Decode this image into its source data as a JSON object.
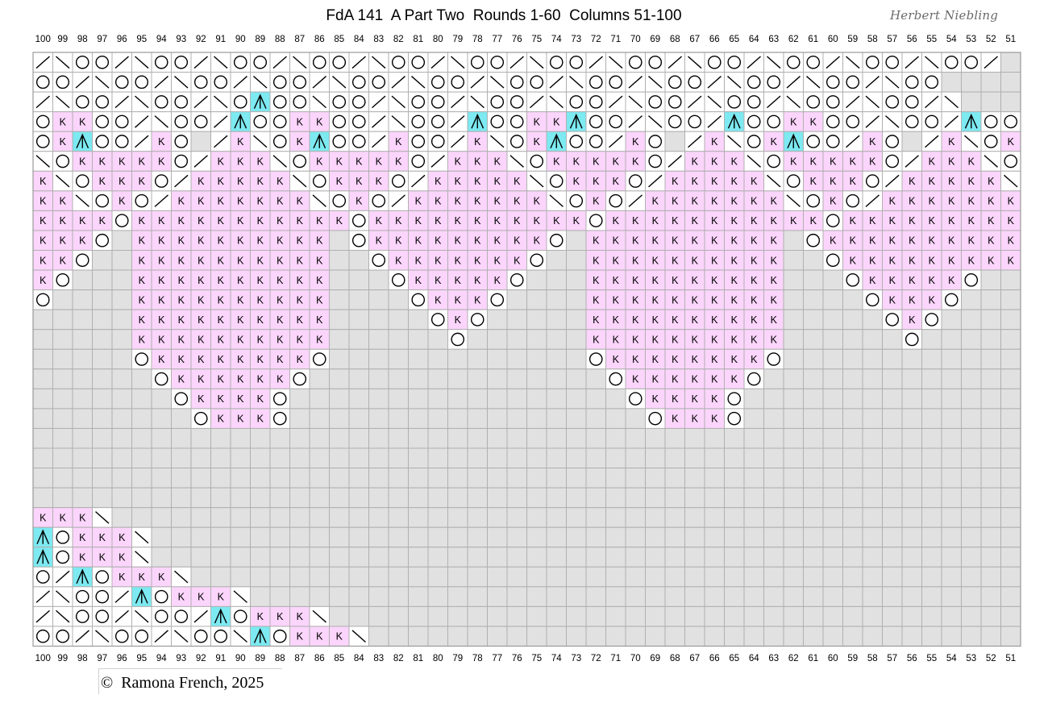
{
  "title": "FdA 141  A Part Two  Rounds 1-60  Columns 51-100",
  "signature": "Herbert Niebling",
  "copyright": "©  Ramona French, 2025",
  "chart": {
    "first_column": 100,
    "last_column": 51,
    "legend_codes": {
      "K": "knit",
      "O": "yarn over",
      "/": "slash",
      "\\": "backslash",
      "^": "central double decrease",
      "#": "no stitch",
      ".": "empty"
    },
    "colors": {
      "knit": "#fbd5fb",
      "decrease_highlight": "#7de9f1",
      "no_stitch": "#e1e1e1",
      "grid": "#b0b0b0",
      "empty": "#ffffff"
    },
    "rows": [
      "/\\OO/\\OO/\\OO/\\OO/\\OO/\\OO/\\OO/\\OO/\\OO/\\OO/\\OO/\\OO/",
      "OO/\\OO/\\OO/\\OO/\\OO/\\OO/\\OO/\\OO/\\OO/\\OO/\\OO/\\OO",
      "/\\OO/\\OO/\\O^OO\\OO/\\OO/\\OO/\\OO/\\OO/\\OO/\\OO/\\OO/\\",
      "OKKOO/\\OO/^OOKKOO/\\OO/^OOKK^OO/\\OO/^OOKKOO/\\OO/^OOK",
      "OK^OO/KO#/K\\OK^OO/KOO/K\\OK^OO/KO#/K\\OK^OO/KO#/K\\OK",
      "\\OKKKKKO/KKK\\OKKKKKO/KKK\\OKKKKKO/KKK\\OKKKKKO/KKK\\O",
      "K\\OKKKO/KKKKK\\OKKKO/KKKKK\\OKKKO/KKKKK\\OKKKO/KKKKK\\",
      "KK\\OKO/KKKKKKK\\OKO/KKKKKKK\\OKO/KKKKKKK\\OKO/KKKKKKK",
      "KKKKOKKKKKKKKKKKOKKKKKKKKKKKOKKKKKKKKKKKOKKKKKKKKKKK",
      "KKKO#KKKKKKKKKK#OKKKKKKKKKO#KKKKKKKKKK#OKKKKKKKKKK",
      "KKO##KKKKKKKKKK##OKKKKKKKO##KKKKKKKKKK##OKKKKKKKKK",
      "KO###KKKKKKKKKK###OKKKKKO###KKKKKKKKKK###OKKKKKO",
      "O####KKKKKKKKKK####OKKKO####KKKKKKKKKK####OKKKO##",
      "#####KKKKKKKKKK#####OKO#####KKKKKKKKKK#####OKO###",
      "#####KKKKKKKKKK######O######KKKKKKKKKK######O####",
      "#####OKKKKKKKKO#############OKKKKKKKKO###########",
      "######OKKKKKKO###############OKKKKKKO############",
      "#######OKKKKO#################OKKKKO#############",
      "########OKKKO##################OKKKO##############",
      "##################################################",
      "##################################################",
      "##################################################",
      "##################################################",
      "KKK\\##############################################",
      "^OKKK\\############################################",
      "^OKKK\\############################################",
      "O/^OKKK\\##########################################",
      "/\\OO/^OKKK\\#######################################",
      "/\\OO/\\OO/^OKKK\\###################################",
      "OO/\\OO/\\OO\\^OKKK\\################################"
    ]
  }
}
